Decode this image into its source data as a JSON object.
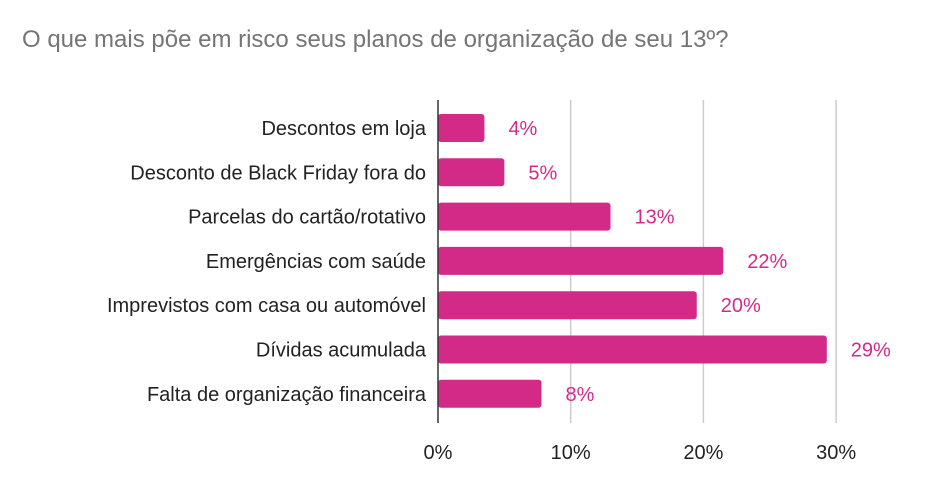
{
  "chart_data": {
    "type": "bar",
    "orientation": "horizontal",
    "title": "O que mais põe em risco seus planos de organização de seu 13º?",
    "categories": [
      "Descontos em loja",
      "Desconto de Black Friday fora do",
      "Parcelas do cartão/rotativo",
      "Emergências com saúde",
      "Imprevistos com casa ou automóvel",
      "Dívidas acumulada",
      "Falta de organização financeira"
    ],
    "values": [
      3.5,
      5,
      13,
      21.5,
      19.5,
      29.3,
      7.8
    ],
    "data_labels": [
      "4%",
      "5%",
      "13%",
      "22%",
      "20%",
      "29%",
      "8%"
    ],
    "xlim": [
      0,
      30
    ],
    "x_ticks": [
      0,
      10,
      20,
      30
    ],
    "x_tick_labels": [
      "0%",
      "10%",
      "20%",
      "30%"
    ],
    "grid": true,
    "legend": "none",
    "colors": {
      "bar": "#d42a87",
      "label": "#d42a87",
      "grid": "#cccccc",
      "axis": "#333333",
      "title": "#757575"
    }
  }
}
